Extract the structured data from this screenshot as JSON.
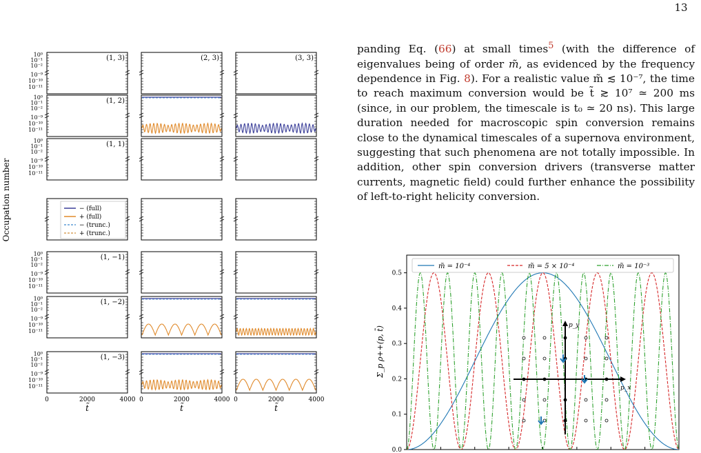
{
  "page_number": "13",
  "paragraph": {
    "t1": "panding Eq. (",
    "ref_eq": "66",
    "t2": ") at small times",
    "ref_fn": "5",
    "t3": " (with the difference of eigenvalues being of order ",
    "mtilde": "m̃",
    "t4": ", as evidenced by the frequency dependence in Fig. ",
    "ref_fig": "8",
    "t5": "). For a realistic value m̃ ≲ 10⁻⁷, the time to reach maximum conversion would be t̃ ≳ 10⁷ ≃ 200 ms (since, in our problem, the timescale is t₀ ≃ 20 ns). This large duration needed for macroscopic spin conversion remains close to the dynamical timescales of a supernova environment, suggesting that such phenomena are not totally impossible. In addition, other spin conversion drivers (transverse matter currents, magnetic field) could further enhance the possibility of left-to-right helicity conversion."
  },
  "left_figure": {
    "ylabel": "Occupation number",
    "xlabel": "t̃",
    "xticks": [
      "0",
      "2000",
      "4000"
    ],
    "ytick_labels_top": [
      "10⁰",
      "10⁻¹",
      "10⁻²"
    ],
    "ytick_labels_bottom": [
      "10⁻⁹",
      "10⁻¹⁰",
      "10⁻¹¹"
    ],
    "rows": [
      {
        "label": "(1, 3)",
        "col3_label": "(2, 3)",
        "col3_label2": "(3, 3)",
        "has_yticks": true,
        "panels": [
          {
            "line": false
          },
          {
            "line": false
          },
          {
            "line": false
          }
        ]
      },
      {
        "label": "(1, 2)",
        "has_yticks": true,
        "panels": [
          {
            "line": false
          },
          {
            "line": true,
            "osc": "orange-dense"
          },
          {
            "line": false,
            "osc": "blue"
          }
        ]
      },
      {
        "label": "(1, 1)",
        "has_yticks": true,
        "panels": [
          {
            "line": false
          },
          {
            "line": false
          },
          {
            "line": false
          }
        ]
      },
      {
        "label": "",
        "has_yticks": false,
        "panels": [
          {
            "line": false
          },
          {
            "line": false
          },
          {
            "line": false
          }
        ]
      },
      {
        "label": "(1, −1)",
        "has_yticks": true,
        "panels": [
          {
            "line": false
          },
          {
            "line": false
          },
          {
            "line": false
          }
        ]
      },
      {
        "label": "(1, −2)",
        "has_yticks": true,
        "panels": [
          {
            "line": false
          },
          {
            "line": true,
            "osc": "orange-arches"
          },
          {
            "line": true,
            "osc": "orange-fast"
          }
        ]
      },
      {
        "label": "(1, −3)",
        "has_yticks": true,
        "panels": [
          {
            "line": false
          },
          {
            "line": true,
            "osc": "orange-dense"
          },
          {
            "line": true,
            "osc": "orange-arches"
          }
        ]
      }
    ],
    "legend": [
      "− (full)",
      "+ (full)",
      "− (trunc.)",
      "+ (trunc.)"
    ],
    "colors": {
      "minus": "#3b3f99",
      "plus": "#e08a2b",
      "minus_trunc": "#5b9bd5",
      "plus_trunc": "#d9a15a"
    }
  },
  "chart_data": {
    "type": "line",
    "ylabel": "Σ_p ρ++(p, t̃)",
    "yticks": [
      "0.0",
      "0.1",
      "0.2",
      "0.3",
      "0.4",
      "0.5"
    ],
    "ylim": [
      0,
      0.55
    ],
    "xlim": [
      0,
      20000
    ],
    "legend_position": "top",
    "series": [
      {
        "name": "m̃ = 10⁻⁴",
        "color": "#1f77b4",
        "style": "solid",
        "omega": 0.000157
      },
      {
        "name": "m̃ = 5 × 10⁻⁴",
        "color": "#d62728",
        "style": "dashed",
        "omega": 0.000785
      },
      {
        "name": "m̃ = 10⁻³",
        "color": "#2ca02c",
        "style": "dashdot",
        "omega": 0.00157
      }
    ],
    "inset": {
      "xlabel": "p_x",
      "ylabel": "p_y"
    }
  }
}
